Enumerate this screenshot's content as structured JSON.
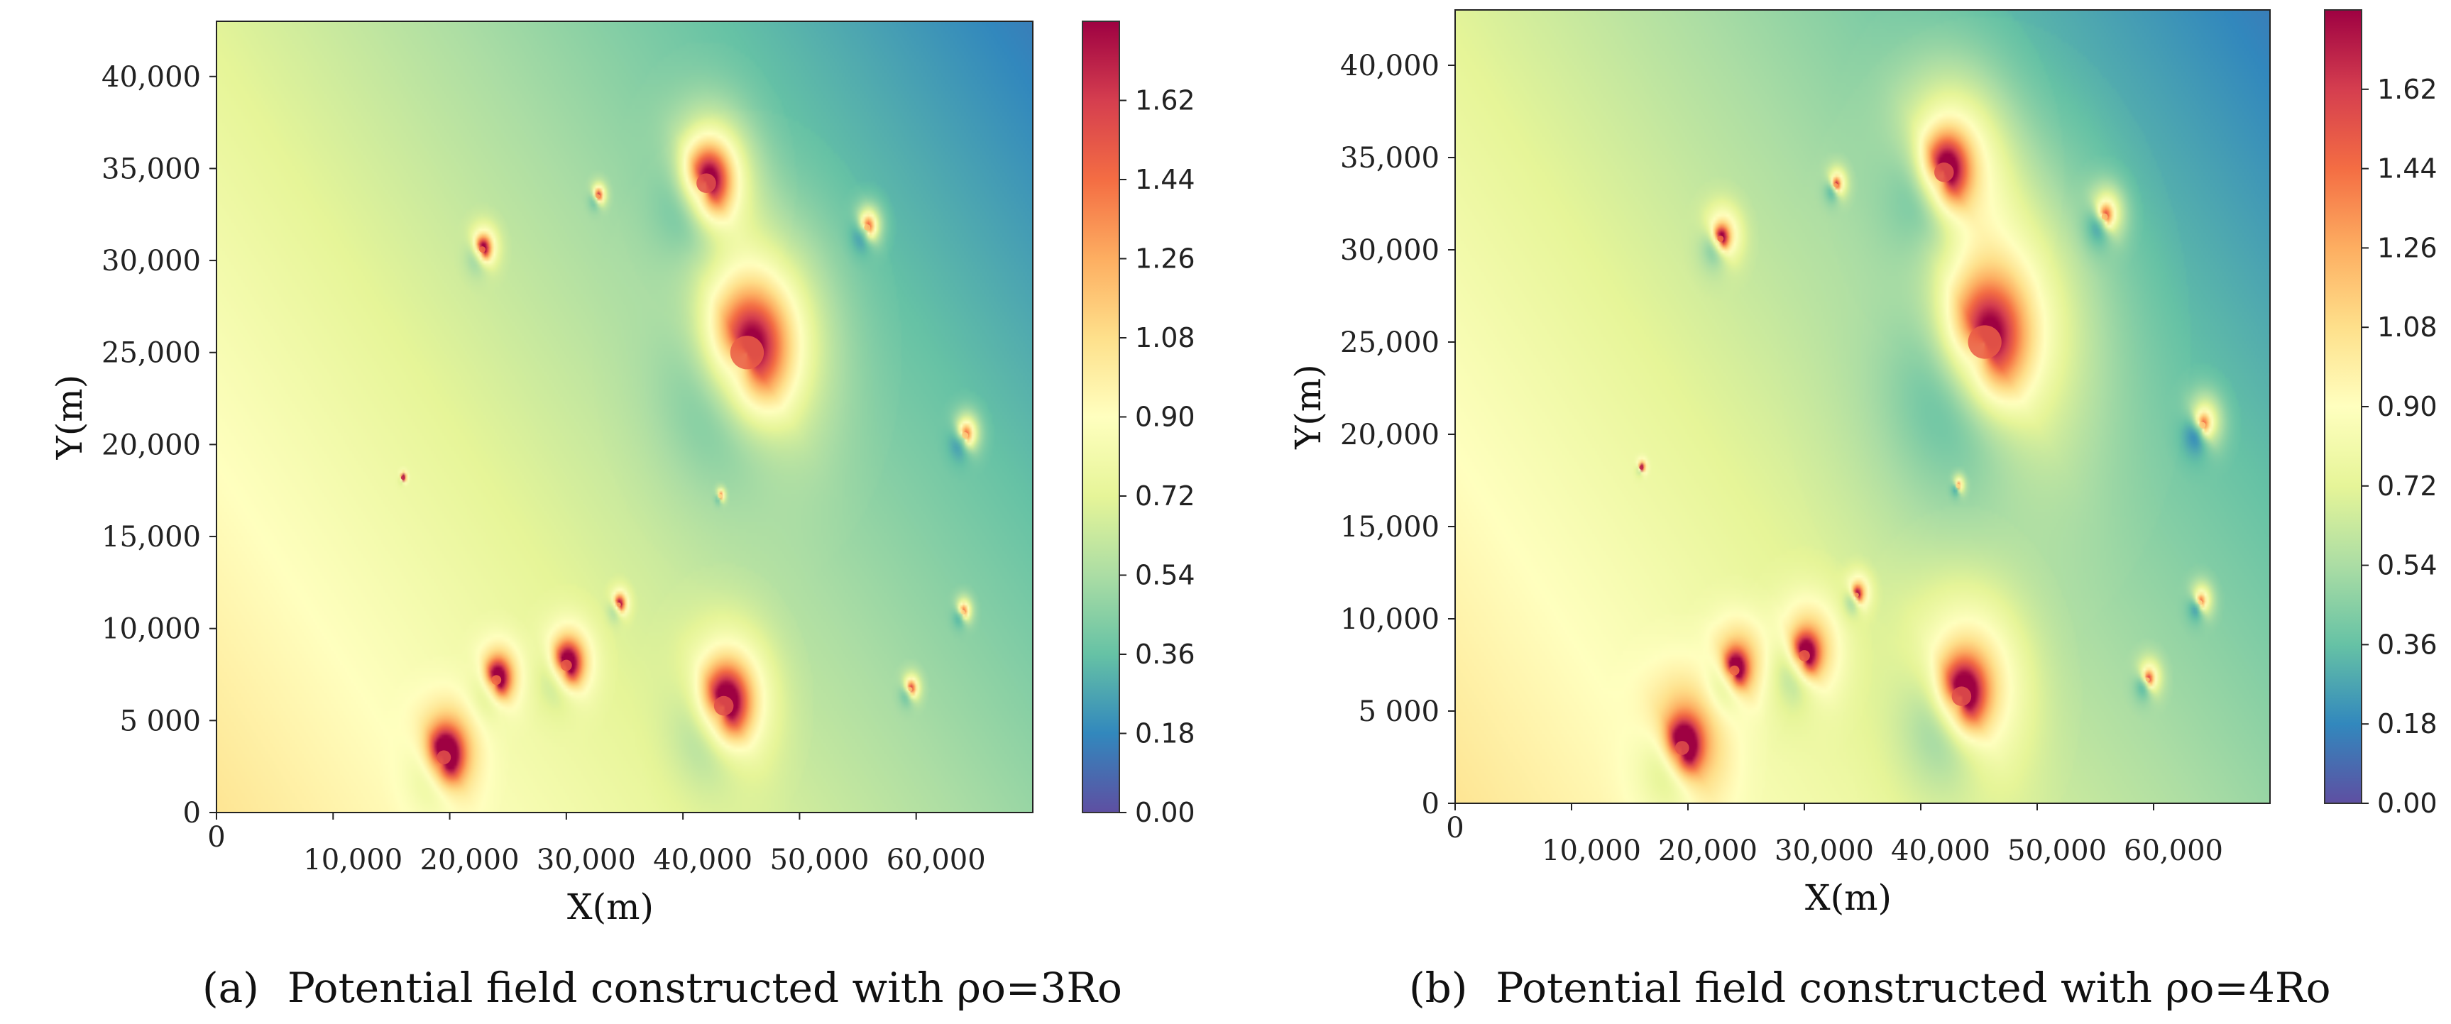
{
  "chart_data": [
    {
      "type": "heatmap",
      "panel_label": "(a)",
      "caption_text": "Potential field constructed with ρo=3Ro",
      "xlabel": "X(m)",
      "ylabel": "Y(m)",
      "xlim": [
        0,
        70000
      ],
      "ylim": [
        0,
        43000
      ],
      "x_ticks": [
        0,
        10000,
        20000,
        30000,
        40000,
        50000,
        60000
      ],
      "x_tick_labels": [
        "0",
        "10,000",
        "20,000",
        "30,000",
        "40,000",
        "50,000",
        "60,000"
      ],
      "y_ticks": [
        0,
        5000,
        10000,
        15000,
        20000,
        25000,
        30000,
        35000,
        40000
      ],
      "y_tick_labels": [
        "0",
        "5 000",
        "10,000",
        "15,000",
        "20,000",
        "25,000",
        "30,000",
        "35,000",
        "40,000"
      ],
      "colorbar": {
        "min": 0.0,
        "max": 1.8,
        "ticks": [
          "0.00",
          "0.18",
          "0.36",
          "0.54",
          "0.72",
          "0.90",
          "1.08",
          "1.26",
          "1.44",
          "1.62"
        ],
        "colormap": "Spectral_r"
      },
      "influence_scale": 3,
      "obstacles": [
        {
          "x": 19500,
          "y": 3000,
          "r": 1000,
          "peak": 1.55
        },
        {
          "x": 24000,
          "y": 7200,
          "r": 700,
          "peak": 1.45
        },
        {
          "x": 30000,
          "y": 8000,
          "r": 800,
          "peak": 1.5
        },
        {
          "x": 43500,
          "y": 5800,
          "r": 1400,
          "peak": 1.55
        },
        {
          "x": 34500,
          "y": 11300,
          "r": 300,
          "peak": 1.3
        },
        {
          "x": 59500,
          "y": 6700,
          "r": 300,
          "peak": 1.2
        },
        {
          "x": 64000,
          "y": 10900,
          "r": 280,
          "peak": 1.1
        },
        {
          "x": 45500,
          "y": 25000,
          "r": 2400,
          "peak": 1.5
        },
        {
          "x": 42000,
          "y": 34200,
          "r": 1400,
          "peak": 1.55
        },
        {
          "x": 22800,
          "y": 30600,
          "r": 450,
          "peak": 1.45
        },
        {
          "x": 32700,
          "y": 33500,
          "r": 250,
          "peak": 1.3
        },
        {
          "x": 55800,
          "y": 31800,
          "r": 450,
          "peak": 1.2
        },
        {
          "x": 64200,
          "y": 20500,
          "r": 450,
          "peak": 1.15
        },
        {
          "x": 43200,
          "y": 17200,
          "r": 150,
          "peak": 1.1
        },
        {
          "x": 16000,
          "y": 18200,
          "r": 120,
          "peak": 1.7
        }
      ]
    },
    {
      "type": "heatmap",
      "panel_label": "(b)",
      "caption_text": "Potential field constructed with ρo=4Ro",
      "xlabel": "X(m)",
      "ylabel": "Y(m)",
      "xlim": [
        0,
        70000
      ],
      "ylim": [
        0,
        43000
      ],
      "x_ticks": [
        0,
        10000,
        20000,
        30000,
        40000,
        50000,
        60000
      ],
      "x_tick_labels": [
        "0",
        "10,000",
        "20,000",
        "30,000",
        "40,000",
        "50,000",
        "60,000"
      ],
      "y_ticks": [
        0,
        5000,
        10000,
        15000,
        20000,
        25000,
        30000,
        35000,
        40000
      ],
      "y_tick_labels": [
        "0",
        "5 000",
        "10,000",
        "15,000",
        "20,000",
        "25,000",
        "30,000",
        "35,000",
        "40,000"
      ],
      "colorbar": {
        "min": 0.0,
        "max": 1.8,
        "ticks": [
          "0.00",
          "0.18",
          "0.36",
          "0.54",
          "0.72",
          "0.90",
          "1.08",
          "1.26",
          "1.44",
          "1.62"
        ],
        "colormap": "Spectral_r"
      },
      "influence_scale": 4,
      "obstacles": [
        {
          "x": 19500,
          "y": 3000,
          "r": 1000,
          "peak": 1.55
        },
        {
          "x": 24000,
          "y": 7200,
          "r": 700,
          "peak": 1.45
        },
        {
          "x": 30000,
          "y": 8000,
          "r": 800,
          "peak": 1.5
        },
        {
          "x": 43500,
          "y": 5800,
          "r": 1400,
          "peak": 1.55
        },
        {
          "x": 34500,
          "y": 11300,
          "r": 300,
          "peak": 1.3
        },
        {
          "x": 59500,
          "y": 6700,
          "r": 300,
          "peak": 1.2
        },
        {
          "x": 64000,
          "y": 10900,
          "r": 280,
          "peak": 1.1
        },
        {
          "x": 45500,
          "y": 25000,
          "r": 2400,
          "peak": 1.5
        },
        {
          "x": 42000,
          "y": 34200,
          "r": 1400,
          "peak": 1.55
        },
        {
          "x": 22800,
          "y": 30600,
          "r": 450,
          "peak": 1.45
        },
        {
          "x": 32700,
          "y": 33500,
          "r": 250,
          "peak": 1.3
        },
        {
          "x": 55800,
          "y": 31800,
          "r": 450,
          "peak": 1.2
        },
        {
          "x": 64200,
          "y": 20500,
          "r": 450,
          "peak": 1.15
        },
        {
          "x": 43200,
          "y": 17200,
          "r": 150,
          "peak": 1.1
        },
        {
          "x": 16000,
          "y": 18200,
          "r": 120,
          "peak": 1.7
        }
      ]
    }
  ]
}
